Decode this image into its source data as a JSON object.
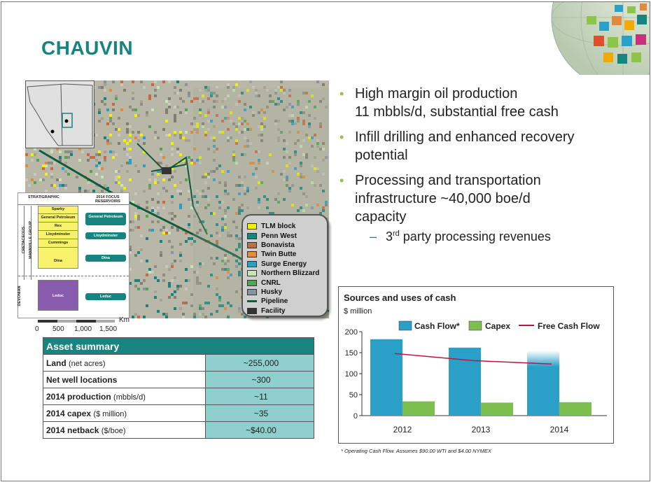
{
  "title": "CHAUVIN",
  "map": {
    "legend": [
      {
        "label": "TLM block",
        "color": "#f2f200"
      },
      {
        "label": "Penn West",
        "color": "#17847f"
      },
      {
        "label": "Bonavista",
        "color": "#c76a3f"
      },
      {
        "label": "Twin Butte",
        "color": "#e28a3b"
      },
      {
        "label": "Surge Energy",
        "color": "#2a9fc7"
      },
      {
        "label": "Northern Blizzard",
        "color": "#c7e6b5"
      },
      {
        "label": "CNRL",
        "color": "#4fa84f"
      },
      {
        "label": "Husky",
        "color": "#8793a3"
      }
    ],
    "legend_pipeline": "Pipeline",
    "legend_facility": "Facility",
    "scale_unit": "Km",
    "scale_ticks": [
      "0",
      "500",
      "1,000",
      "1,500"
    ]
  },
  "strat": {
    "header_left": "STRATIGRAPHIC",
    "header_right": "2014 FOCUS RESERVOIRS",
    "era": "CRETACEOUS",
    "group": "MANNVILLE GROUP",
    "devonian": "DEVONIAN",
    "units": [
      "Sparky",
      "General Petroleum",
      "Rex",
      "Lloydminster",
      "Cummings",
      "Dina",
      "Leduc"
    ],
    "reservoirs": [
      "General Petroleum",
      "Lloydminster",
      "Dina",
      "Leduc"
    ]
  },
  "asset_summary": {
    "header": "Asset summary",
    "rows": [
      {
        "label": "Land",
        "unit": "(net acres)",
        "value": "~255,000"
      },
      {
        "label": "Net well locations",
        "unit": "",
        "value": "~300"
      },
      {
        "label": "2014 production",
        "unit": "(mbbls/d)",
        "value": "~11"
      },
      {
        "label": "2014 capex",
        "unit": "($ million)",
        "value": "~35"
      },
      {
        "label": "2014 netback",
        "unit": "($/boe)",
        "value": "~$40.00"
      }
    ]
  },
  "bullets": {
    "b1_line1": "High margin oil production",
    "b1_line2": "11 mbbls/d, substantial free cash",
    "b2_line1": "Infill drilling and enhanced recovery",
    "b2_line2": "potential",
    "b3_line1": "Processing and transportation",
    "b3_line2": "infrastructure ~40,000 boe/d",
    "b3_line3": "capacity",
    "sub_dash": "–",
    "sub_pre": "3",
    "sub_sup": "rd",
    "sub_post": " party processing revenues"
  },
  "chart_data": {
    "type": "bar",
    "title": "Sources and uses of cash",
    "ylabel": "$ million",
    "categories": [
      "2012",
      "2013",
      "2014"
    ],
    "series": [
      {
        "name": "Cash Flow*",
        "type": "bar",
        "color": "#2a9fc7",
        "values": [
          182,
          162,
          155
        ]
      },
      {
        "name": "Capex",
        "type": "bar",
        "color": "#7cbf4f",
        "values": [
          34,
          31,
          32
        ]
      },
      {
        "name": "Free Cash Flow",
        "type": "line",
        "color": "#c0143c",
        "values": [
          148,
          131,
          123
        ]
      }
    ],
    "yticks": [
      "0",
      "50",
      "100",
      "150",
      "200"
    ],
    "ylim": [
      0,
      200
    ],
    "legend_position": "top",
    "grid": false
  },
  "footnote": "* Operating Cash Flow. Assumes $90.00 WTI and $4.00 NYMEX"
}
